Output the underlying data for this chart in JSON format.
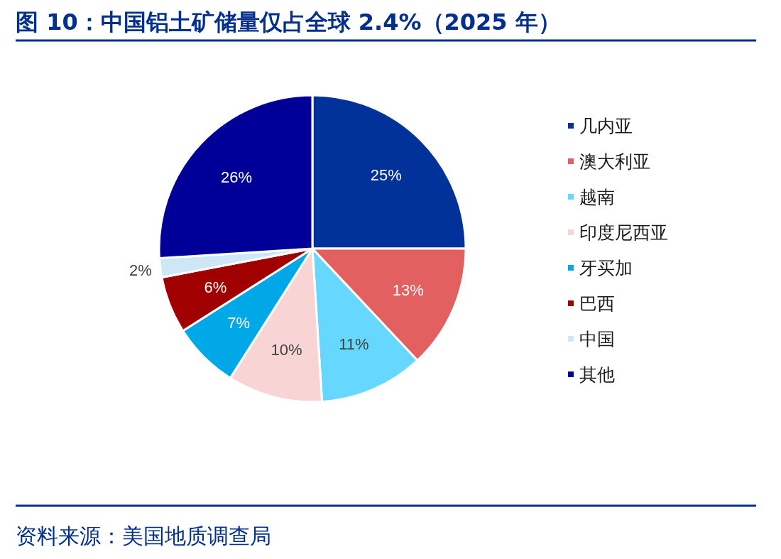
{
  "chart_data": {
    "type": "pie",
    "title": "图 10：中国铝土矿储量仅占全球 2.4%（2025 年）",
    "categories": [
      "几内亚",
      "澳大利亚",
      "越南",
      "印度尼西亚",
      "牙买加",
      "巴西",
      "中国",
      "其他"
    ],
    "values": [
      25,
      13,
      11,
      10,
      7,
      6,
      2,
      26
    ],
    "colors": [
      "#00329a",
      "#e36060",
      "#66d8ff",
      "#f8d4d4",
      "#00a8e8",
      "#a00000",
      "#cde7f7",
      "#000099"
    ],
    "value_labels": [
      "25%",
      "13%",
      "11%",
      "10%",
      "7%",
      "6%",
      "2%",
      "26%"
    ],
    "legend": "right",
    "annotations": [
      "资料来源：美国地质调查局"
    ]
  }
}
